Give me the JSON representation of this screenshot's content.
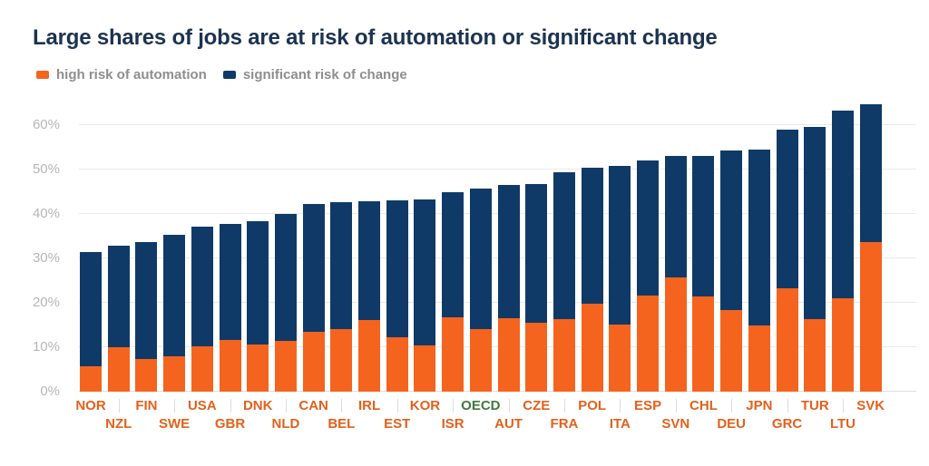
{
  "title": "Large shares of jobs are at risk of automation or significant change",
  "legend": {
    "items": [
      {
        "label": "high risk of automation",
        "color": "#f4641e"
      },
      {
        "label": "significant risk of change",
        "color": "#0f3a68"
      }
    ]
  },
  "chart_data": {
    "type": "bar",
    "stacked": true,
    "title": "Large shares of jobs are at risk of automation or significant change",
    "categories": [
      "NOR",
      "NZL",
      "FIN",
      "SWE",
      "USA",
      "GBR",
      "DNK",
      "NLD",
      "CAN",
      "BEL",
      "IRL",
      "EST",
      "KOR",
      "ISR",
      "OECD",
      "AUT",
      "CZE",
      "FRA",
      "POL",
      "ITA",
      "ESP",
      "SVN",
      "CHL",
      "DEU",
      "JPN",
      "GRC",
      "TUR",
      "LTU",
      "SVK"
    ],
    "series": [
      {
        "name": "high risk of automation",
        "color": "#f4641e",
        "values": [
          5.7,
          10.0,
          7.3,
          8.0,
          10.2,
          11.6,
          10.6,
          11.4,
          13.5,
          14.0,
          16.1,
          12.2,
          10.4,
          16.7,
          14.0,
          16.5,
          15.5,
          16.4,
          19.9,
          15.2,
          21.7,
          25.8,
          21.5,
          18.4,
          14.9,
          23.3,
          16.4,
          21.0,
          33.7
        ]
      },
      {
        "name": "significant risk of change",
        "color": "#0f3a68",
        "values": [
          25.7,
          22.8,
          26.3,
          27.4,
          27.0,
          26.1,
          27.7,
          28.6,
          28.7,
          28.6,
          26.8,
          30.9,
          32.9,
          28.2,
          31.7,
          30.0,
          31.2,
          32.9,
          30.5,
          35.7,
          30.3,
          27.3,
          31.5,
          35.9,
          39.5,
          35.6,
          43.2,
          42.2,
          31.0
        ]
      }
    ],
    "xlabel": "",
    "ylabel": "",
    "yticks": [
      0,
      10,
      20,
      30,
      40,
      50,
      60
    ],
    "ytick_labels": [
      "0%",
      "10%",
      "20%",
      "30%",
      "40%",
      "50%",
      "60%"
    ],
    "ylim": [
      0,
      66
    ],
    "grid": true,
    "legend_position": "top-left",
    "category_label_color": "#e2611c",
    "highlight_category": {
      "label": "OECD",
      "color": "#3f7a3c"
    },
    "axis_tick_color": "#b5b5b5"
  }
}
